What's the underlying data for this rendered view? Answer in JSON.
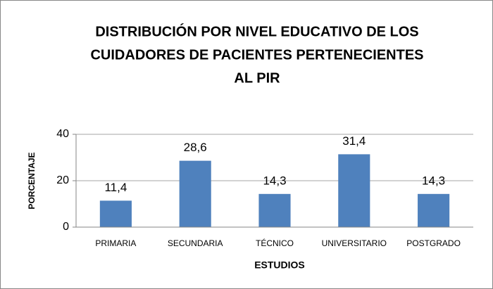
{
  "chart_data": {
    "type": "bar",
    "title": [
      "DISTRIBUCIÓN POR NIVEL EDUCATIVO DE LOS",
      "CUIDADORES DE PACIENTES PERTENECIENTES",
      "AL PIR"
    ],
    "x_label": "ESTUDIOS",
    "y_label": "PORCENTAJE",
    "categories": [
      "PRIMARIA",
      "SECUNDARIA",
      "TÉCNICO",
      "UNIVERSITARIO",
      "POSTGRADO"
    ],
    "values": [
      11.4,
      28.6,
      14.3,
      31.4,
      14.3
    ],
    "value_labels": [
      "11,4",
      "28,6",
      "14,3",
      "31,4",
      "14,3"
    ],
    "color": "#4f81bd",
    "ylim": [
      0,
      40
    ],
    "yticks": [
      0,
      20,
      40
    ],
    "grid": true
  }
}
